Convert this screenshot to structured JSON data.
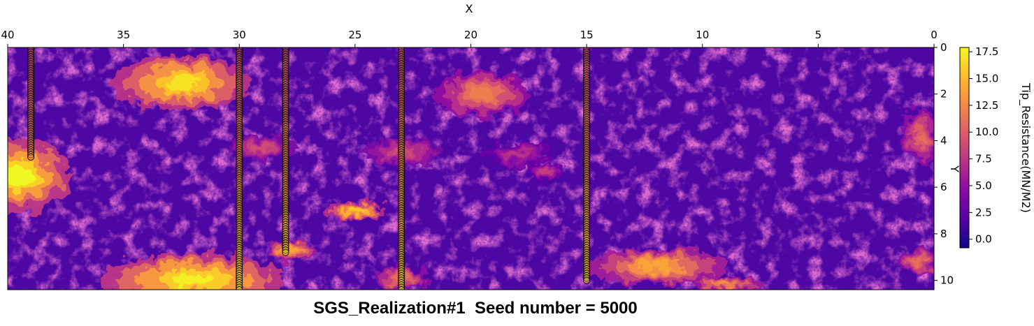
{
  "caption": "SGS_Realization#1  Seed number = 5000",
  "chart_data": {
    "type": "heatmap",
    "title": "",
    "xlabel": "X",
    "ylabel": "Y",
    "colorbar_label": "Tip_Resistance(MN/M2)",
    "colormap": "plasma",
    "xlim": [
      40,
      0
    ],
    "ylim": [
      0,
      10.4
    ],
    "x_ticks": [
      "40",
      "35",
      "30",
      "25",
      "20",
      "15",
      "10",
      "5",
      "0"
    ],
    "x_tick_values": [
      40,
      35,
      30,
      25,
      20,
      15,
      10,
      5,
      0
    ],
    "y_ticks": [
      "0",
      "2",
      "4",
      "6",
      "8",
      "10"
    ],
    "y_tick_values": [
      0,
      2,
      4,
      6,
      8,
      10
    ],
    "colorbar_range": [
      -0.8,
      17.9
    ],
    "colorbar_ticks": [
      "0.0",
      "2.5",
      "5.0",
      "7.5",
      "10.0",
      "12.5",
      "15.0",
      "17.5"
    ],
    "colorbar_tick_values": [
      0,
      2.5,
      5,
      7.5,
      10,
      12.5,
      15,
      17.5
    ],
    "high_value_zones": [
      {
        "x": 32.5,
        "y": 1.5,
        "rx": 3.0,
        "ry": 1.2,
        "value": 17.0
      },
      {
        "x": 39.5,
        "y": 5.5,
        "rx": 2.2,
        "ry": 1.6,
        "value": 17.9
      },
      {
        "x": 32.0,
        "y": 10.0,
        "rx": 4.0,
        "ry": 1.2,
        "value": 17.5
      },
      {
        "x": 19.5,
        "y": 2.0,
        "rx": 2.0,
        "ry": 1.0,
        "value": 12.0
      },
      {
        "x": 25.0,
        "y": 7.0,
        "rx": 1.3,
        "ry": 0.4,
        "value": 16.0
      },
      {
        "x": 27.8,
        "y": 8.7,
        "rx": 1.0,
        "ry": 0.5,
        "value": 14.0
      },
      {
        "x": 12.0,
        "y": 9.4,
        "rx": 3.0,
        "ry": 0.8,
        "value": 14.0
      },
      {
        "x": 9.0,
        "y": 10.2,
        "rx": 1.5,
        "ry": 0.4,
        "value": 13.0
      },
      {
        "x": 0.6,
        "y": 3.8,
        "rx": 0.8,
        "ry": 1.2,
        "value": 11.0
      },
      {
        "x": 0.6,
        "y": 9.2,
        "rx": 0.8,
        "ry": 0.6,
        "value": 11.0
      },
      {
        "x": 23.0,
        "y": 4.5,
        "rx": 1.8,
        "ry": 0.6,
        "value": 9.0
      },
      {
        "x": 18.0,
        "y": 4.6,
        "rx": 1.5,
        "ry": 0.5,
        "value": 7.5
      },
      {
        "x": 29.0,
        "y": 4.3,
        "rx": 1.5,
        "ry": 0.5,
        "value": 9.0
      },
      {
        "x": 16.8,
        "y": 5.3,
        "rx": 0.8,
        "ry": 0.4,
        "value": 8.0
      },
      {
        "x": 23.0,
        "y": 9.9,
        "rx": 1.2,
        "ry": 0.5,
        "value": 11.0
      }
    ],
    "boreholes": [
      {
        "x": 39.0,
        "y_start": 0.0,
        "y_end": 4.7
      },
      {
        "x": 30.0,
        "y_start": 0.0,
        "y_end": 10.4
      },
      {
        "x": 28.0,
        "y_start": 0.0,
        "y_end": 8.8
      },
      {
        "x": 23.0,
        "y_start": 0.0,
        "y_end": 10.4
      },
      {
        "x": 15.0,
        "y_start": 0.0,
        "y_end": 10.0
      }
    ],
    "borehole_sample_spacing": 0.1
  }
}
